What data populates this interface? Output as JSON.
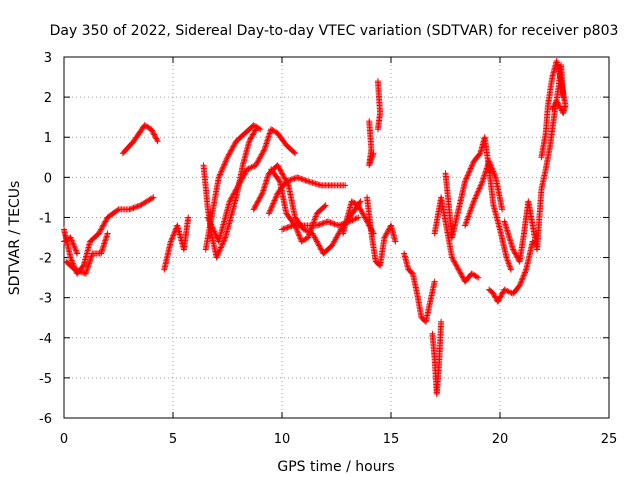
{
  "chart_data": {
    "type": "scatter",
    "title": "Day 350 of 2022, Sidereal Day-to-day VTEC variation (SDTVAR) for receiver p803",
    "xlabel": "GPS time / hours",
    "ylabel": "SDTVAR / TECUs",
    "xlim": [
      0,
      25
    ],
    "ylim": [
      -6,
      3
    ],
    "xticks": [
      "0",
      "5",
      "10",
      "15",
      "20",
      "25"
    ],
    "yticks": [
      "-6",
      "-5",
      "-4",
      "-3",
      "-2",
      "-1",
      "0",
      "1",
      "2",
      "3"
    ],
    "grid": true,
    "marker": "+",
    "color": "#ff0000",
    "series": [
      {
        "name": "p803",
        "tracks": [
          [
            [
              0.0,
              -1.3
            ],
            [
              0.3,
              -2.0
            ],
            [
              0.6,
              -2.4
            ],
            [
              0.9,
              -2.2
            ],
            [
              1.2,
              -1.6
            ],
            [
              1.6,
              -1.4
            ],
            [
              2.0,
              -1.0
            ],
            [
              2.5,
              -0.8
            ],
            [
              3.0,
              -0.8
            ],
            [
              3.5,
              -0.7
            ],
            [
              4.1,
              -0.5
            ]
          ],
          [
            [
              0.1,
              -2.1
            ],
            [
              0.5,
              -2.3
            ],
            [
              1.0,
              -2.4
            ],
            [
              1.3,
              -1.9
            ],
            [
              1.7,
              -1.9
            ],
            [
              2.0,
              -1.4
            ]
          ],
          [
            [
              0.0,
              -1.6
            ],
            [
              0.3,
              -1.5
            ],
            [
              0.6,
              -1.9
            ]
          ],
          [
            [
              2.7,
              0.6
            ],
            [
              3.2,
              0.9
            ],
            [
              3.7,
              1.3
            ],
            [
              4.0,
              1.2
            ],
            [
              4.3,
              0.9
            ]
          ],
          [
            [
              4.6,
              -2.3
            ],
            [
              4.9,
              -1.6
            ],
            [
              5.2,
              -1.2
            ],
            [
              5.5,
              -1.8
            ],
            [
              5.7,
              -1.0
            ]
          ],
          [
            [
              6.4,
              0.3
            ],
            [
              6.6,
              -0.8
            ],
            [
              6.8,
              -1.5
            ],
            [
              7.0,
              -2.0
            ],
            [
              7.4,
              -1.5
            ],
            [
              7.9,
              -0.5
            ],
            [
              8.2,
              0.3
            ],
            [
              8.5,
              0.9
            ],
            [
              8.8,
              1.2
            ]
          ],
          [
            [
              6.5,
              -1.8
            ],
            [
              6.8,
              -0.9
            ],
            [
              7.1,
              0.0
            ],
            [
              7.5,
              0.5
            ],
            [
              7.9,
              0.9
            ],
            [
              8.3,
              1.1
            ],
            [
              8.7,
              1.3
            ],
            [
              9.0,
              1.2
            ]
          ],
          [
            [
              6.6,
              -1.0
            ],
            [
              7.1,
              -1.6
            ],
            [
              7.6,
              -0.6
            ],
            [
              8.0,
              -0.2
            ],
            [
              8.4,
              0.2
            ],
            [
              8.8,
              0.3
            ],
            [
              9.2,
              0.7
            ],
            [
              9.5,
              1.2
            ],
            [
              9.8,
              1.1
            ],
            [
              10.2,
              0.8
            ],
            [
              10.6,
              0.6
            ]
          ],
          [
            [
              8.7,
              -0.8
            ],
            [
              9.1,
              -0.4
            ],
            [
              9.4,
              0.1
            ],
            [
              9.8,
              0.3
            ],
            [
              10.3,
              -0.2
            ],
            [
              10.6,
              -1.0
            ],
            [
              11.0,
              -1.3
            ],
            [
              11.4,
              -1.4
            ],
            [
              11.9,
              -1.9
            ],
            [
              12.3,
              -1.7
            ],
            [
              12.7,
              -1.3
            ],
            [
              13.1,
              -1.0
            ],
            [
              13.6,
              -0.6
            ]
          ],
          [
            [
              9.4,
              -0.9
            ],
            [
              9.8,
              -0.4
            ],
            [
              10.2,
              -0.1
            ],
            [
              10.7,
              0.0
            ],
            [
              11.2,
              -0.1
            ],
            [
              11.8,
              -0.2
            ],
            [
              12.4,
              -0.2
            ],
            [
              12.9,
              -0.2
            ]
          ],
          [
            [
              9.5,
              0.2
            ],
            [
              9.9,
              -0.1
            ],
            [
              10.2,
              -0.9
            ],
            [
              10.6,
              -1.2
            ],
            [
              10.9,
              -1.6
            ],
            [
              11.2,
              -1.5
            ],
            [
              11.6,
              -0.9
            ],
            [
              12.0,
              -0.7
            ]
          ],
          [
            [
              10.0,
              -1.3
            ],
            [
              10.5,
              -1.2
            ],
            [
              11.1,
              -1.2
            ],
            [
              11.6,
              -1.2
            ],
            [
              12.1,
              -1.1
            ],
            [
              12.6,
              -1.2
            ],
            [
              13.1,
              -1.1
            ],
            [
              13.5,
              -1.0
            ]
          ],
          [
            [
              12.8,
              -1.4
            ],
            [
              13.2,
              -0.6
            ],
            [
              13.5,
              -0.7
            ],
            [
              13.8,
              -1.0
            ],
            [
              14.2,
              -1.4
            ]
          ],
          [
            [
              13.9,
              -0.5
            ],
            [
              14.1,
              -1.4
            ],
            [
              14.3,
              -2.1
            ],
            [
              14.5,
              -2.2
            ],
            [
              14.7,
              -1.5
            ],
            [
              15.0,
              -1.2
            ],
            [
              15.2,
              -1.6
            ]
          ],
          [
            [
              14.0,
              1.4
            ],
            [
              14.1,
              0.7
            ],
            [
              14.0,
              0.3
            ],
            [
              14.2,
              0.6
            ]
          ],
          [
            [
              14.4,
              2.4
            ],
            [
              14.5,
              1.6
            ],
            [
              14.4,
              1.2
            ]
          ],
          [
            [
              15.6,
              -1.9
            ],
            [
              15.8,
              -2.3
            ],
            [
              16.0,
              -2.4
            ],
            [
              16.2,
              -2.9
            ],
            [
              16.4,
              -3.5
            ],
            [
              16.6,
              -3.6
            ],
            [
              16.8,
              -3.1
            ],
            [
              17.0,
              -2.6
            ]
          ],
          [
            [
              16.9,
              -3.9
            ],
            [
              17.0,
              -4.5
            ],
            [
              17.1,
              -5.4
            ],
            [
              17.2,
              -4.7
            ],
            [
              17.3,
              -3.6
            ]
          ],
          [
            [
              17.0,
              -1.4
            ],
            [
              17.3,
              -0.5
            ],
            [
              17.5,
              -1.1
            ],
            [
              17.8,
              -2.0
            ],
            [
              18.1,
              -2.3
            ],
            [
              18.4,
              -2.6
            ],
            [
              18.7,
              -2.4
            ],
            [
              19.0,
              -2.5
            ]
          ],
          [
            [
              17.5,
              0.1
            ],
            [
              17.8,
              -1.5
            ],
            [
              18.1,
              -0.8
            ],
            [
              18.4,
              -0.1
            ],
            [
              18.8,
              0.4
            ],
            [
              19.1,
              0.6
            ],
            [
              19.3,
              1.0
            ],
            [
              19.5,
              0.2
            ],
            [
              19.7,
              -0.7
            ],
            [
              20.0,
              -1.3
            ],
            [
              20.3,
              -2.0
            ],
            [
              20.5,
              -2.3
            ]
          ],
          [
            [
              18.4,
              -1.2
            ],
            [
              18.8,
              -0.6
            ],
            [
              19.2,
              -0.1
            ],
            [
              19.5,
              0.4
            ],
            [
              19.8,
              0.0
            ],
            [
              20.1,
              -0.8
            ]
          ],
          [
            [
              19.5,
              -2.8
            ],
            [
              19.7,
              -2.9
            ],
            [
              19.9,
              -3.1
            ],
            [
              20.2,
              -2.8
            ],
            [
              20.6,
              -2.9
            ],
            [
              20.9,
              -2.7
            ],
            [
              21.2,
              -2.3
            ],
            [
              21.5,
              -1.6
            ]
          ],
          [
            [
              20.2,
              -1.1
            ],
            [
              20.6,
              -1.8
            ],
            [
              20.9,
              -2.1
            ],
            [
              21.1,
              -1.4
            ],
            [
              21.3,
              -0.6
            ],
            [
              21.5,
              -1.2
            ],
            [
              21.7,
              -1.8
            ],
            [
              21.9,
              -0.3
            ],
            [
              22.1,
              0.2
            ],
            [
              22.3,
              0.8
            ],
            [
              22.5,
              1.6
            ],
            [
              22.7,
              2.3
            ],
            [
              22.8,
              2.8
            ],
            [
              22.9,
              2.0
            ]
          ],
          [
            [
              21.9,
              0.5
            ],
            [
              22.1,
              1.1
            ],
            [
              22.2,
              1.8
            ],
            [
              22.4,
              2.5
            ],
            [
              22.6,
              2.9
            ],
            [
              22.8,
              2.4
            ],
            [
              23.0,
              1.8
            ],
            [
              22.9,
              1.6
            ],
            [
              22.6,
              1.9
            ],
            [
              22.4,
              1.7
            ]
          ]
        ]
      }
    ]
  }
}
